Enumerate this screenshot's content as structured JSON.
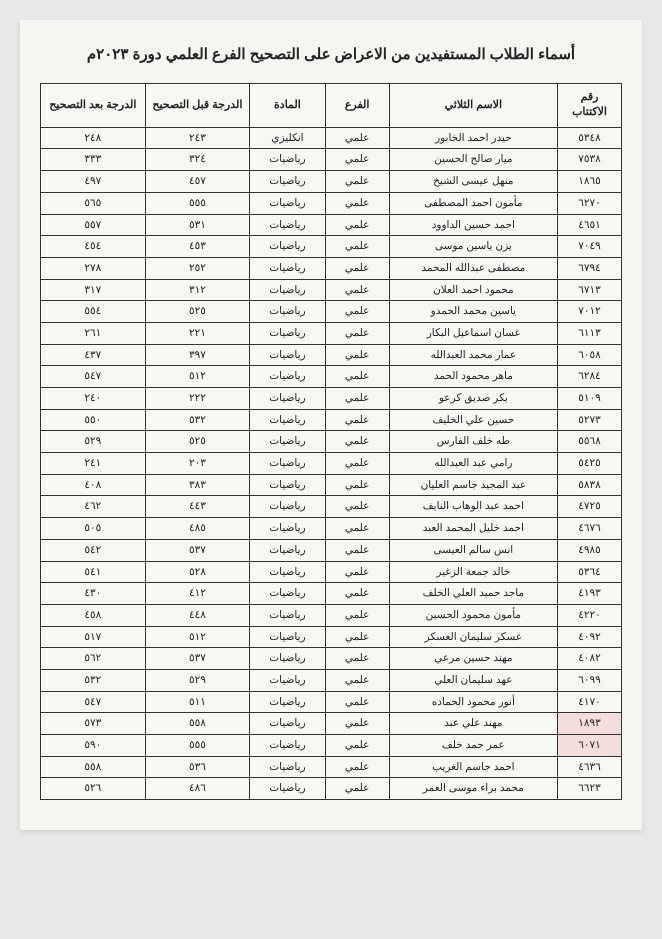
{
  "title": "أسماء الطلاب المستفيدين من الاعراض على التصحيح الفرع العلمي دورة ٢٠٢٣م",
  "headers": {
    "id": "رقم الاكتتاب",
    "name": "الاسم الثلاثي",
    "branch": "الفرع",
    "subject": "المادة",
    "before": "الدرجة قبل التصحيح",
    "after": "الدرجة بعد التصحيح"
  },
  "rows": [
    {
      "id": "٥٣٤٨",
      "name": "حيدر احمد الخابور",
      "branch": "علمي",
      "subject": "انكليزي",
      "before": "٢٤٣",
      "after": "٢٤٨"
    },
    {
      "id": "٧٥٣٨",
      "name": "ميار صالح الحسين",
      "branch": "علمي",
      "subject": "رياضيات",
      "before": "٣٢٤",
      "after": "٣٣٣"
    },
    {
      "id": "١٨٦٥",
      "name": "منهل عيسى الشيخ",
      "branch": "علمي",
      "subject": "رياضيات",
      "before": "٤٥٧",
      "after": "٤٩٧"
    },
    {
      "id": "٦٢٧٠",
      "name": "مأمون احمد المصطفى",
      "branch": "علمي",
      "subject": "رياضيات",
      "before": "٥٥٥",
      "after": "٥٦٥"
    },
    {
      "id": "٤٦٥١",
      "name": "احمد حسين الداوود",
      "branch": "علمي",
      "subject": "رياضيات",
      "before": "٥٣١",
      "after": "٥٥٧"
    },
    {
      "id": "٧٠٤٩",
      "name": "يزن ياسين موسى",
      "branch": "علمي",
      "subject": "رياضيات",
      "before": "٤٥٣",
      "after": "٤٥٤"
    },
    {
      "id": "٦٧٩٤",
      "name": "مصطفى عبدالله المحمد",
      "branch": "علمي",
      "subject": "رياضيات",
      "before": "٢٥٢",
      "after": "٢٧٨"
    },
    {
      "id": "٦٧١٣",
      "name": "محمود احمد العلان",
      "branch": "علمي",
      "subject": "رياضيات",
      "before": "٣١٢",
      "after": "٣١٧"
    },
    {
      "id": "٧٠١٢",
      "name": "ياسين محمد الحمدو",
      "branch": "علمي",
      "subject": "رياضيات",
      "before": "٥٢٥",
      "after": "٥٥٤"
    },
    {
      "id": "٦١١٣",
      "name": "غسان اسماعيل البكار",
      "branch": "علمي",
      "subject": "رياضيات",
      "before": "٢٢١",
      "after": "٢٦١"
    },
    {
      "id": "٦٠٥٨",
      "name": "عمار محمد العبدالله",
      "branch": "علمي",
      "subject": "رياضيات",
      "before": "٣٩٧",
      "after": "٤٣٧"
    },
    {
      "id": "٦٢٨٤",
      "name": "ماهر محمود الحمد",
      "branch": "علمي",
      "subject": "رياضيات",
      "before": "٥١٢",
      "after": "٥٤٧"
    },
    {
      "id": "٥١٠٩",
      "name": "بكر صديق كرعو",
      "branch": "علمي",
      "subject": "رياضيات",
      "before": "٢٢٢",
      "after": "٢٤٠"
    },
    {
      "id": "٥٢٧٣",
      "name": "حسين علي الخليف",
      "branch": "علمي",
      "subject": "رياضيات",
      "before": "٥٣٢",
      "after": "٥٥٠"
    },
    {
      "id": "٥٥٦٨",
      "name": "طه خلف الفارس",
      "branch": "علمي",
      "subject": "رياضيات",
      "before": "٥٢٥",
      "after": "٥٢٩"
    },
    {
      "id": "٥٤٢٥",
      "name": "رامي عبد العبدالله",
      "branch": "علمي",
      "subject": "رياضيات",
      "before": "٢٠٣",
      "after": "٢٤١"
    },
    {
      "id": "٥٨٣٨",
      "name": "عبد المجيد جاسم العليان",
      "branch": "علمي",
      "subject": "رياضيات",
      "before": "٣٨٣",
      "after": "٤٠٨"
    },
    {
      "id": "٤٧٢٥",
      "name": "احمد عبد الوهاب النايف",
      "branch": "علمي",
      "subject": "رياضيات",
      "before": "٤٤٣",
      "after": "٤٦٢"
    },
    {
      "id": "٤٦٧٦",
      "name": "احمد خليل المحمد العبد",
      "branch": "علمي",
      "subject": "رياضيات",
      "before": "٤٨٥",
      "after": "٥٠٥"
    },
    {
      "id": "٤٩٨٥",
      "name": "انس سالم العيسى",
      "branch": "علمي",
      "subject": "رياضيات",
      "before": "٥٣٧",
      "after": "٥٤٢"
    },
    {
      "id": "٥٣٦٤",
      "name": "خالد جمعة الزغير",
      "branch": "علمي",
      "subject": "رياضيات",
      "before": "٥٢٨",
      "after": "٥٤١"
    },
    {
      "id": "٤١٩٣",
      "name": "ماجد حميد العلي الخلف",
      "branch": "علمي",
      "subject": "رياضيات",
      "before": "٤١٢",
      "after": "٤٣٠"
    },
    {
      "id": "٤٢٢٠",
      "name": "مأمون محمود الحسين",
      "branch": "علمي",
      "subject": "رياضيات",
      "before": "٤٤٨",
      "after": "٤٥٨"
    },
    {
      "id": "٤٠٩٢",
      "name": "عسكر سليمان العسكر",
      "branch": "علمي",
      "subject": "رياضيات",
      "before": "٥١٢",
      "after": "٥١٧"
    },
    {
      "id": "٤٠٨٢",
      "name": "مهند حسين مرعي",
      "branch": "علمي",
      "subject": "رياضيات",
      "before": "٥٣٧",
      "after": "٥٦٢"
    },
    {
      "id": "٦٠٩٩",
      "name": "عهد سليمان العلي",
      "branch": "علمي",
      "subject": "رياضيات",
      "before": "٥٢٩",
      "after": "٥٣٢"
    },
    {
      "id": "٤١٧٠",
      "name": "أنور محمود الحماده",
      "branch": "علمي",
      "subject": "رياضيات",
      "before": "٥١١",
      "after": "٥٤٧"
    },
    {
      "id": "١٨٩٣",
      "name": "مهند علي عبد",
      "branch": "علمي",
      "subject": "رياضيات",
      "before": "٥٥٨",
      "after": "٥٧٣",
      "stamp": true
    },
    {
      "id": "٦٠٧١",
      "name": "عمر حمد خلف",
      "branch": "علمي",
      "subject": "رياضيات",
      "before": "٥٥٥",
      "after": "٥٩٠",
      "stamp": true
    },
    {
      "id": "٤٦٣٦",
      "name": "احمد جاسم الغريب",
      "branch": "علمي",
      "subject": "رياضيات",
      "before": "٥٣٦",
      "after": "٥٥٨"
    },
    {
      "id": "٦٦٢٣",
      "name": "محمد براء موسى العمر",
      "branch": "علمي",
      "subject": "رياضيات",
      "before": "٤٨٦",
      "after": "٥٢٦"
    }
  ]
}
